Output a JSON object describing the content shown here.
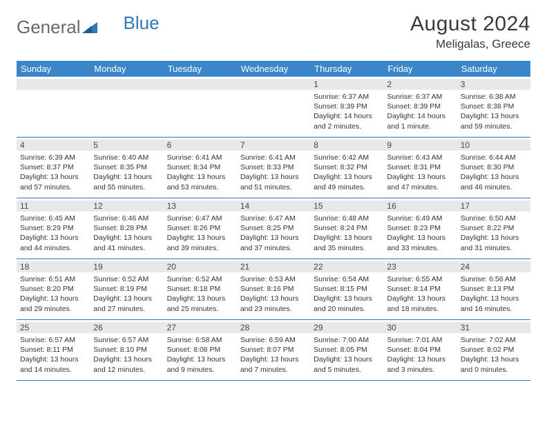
{
  "brand": {
    "part1": "General",
    "part2": "Blue"
  },
  "title": "August 2024",
  "location": "Meligalas, Greece",
  "colors": {
    "header_bg": "#3a86c8",
    "rule": "#3a72a6",
    "daynum_bg": "#e7e8e9",
    "logo_gray": "#6a6a6a",
    "logo_blue": "#2f78b8"
  },
  "weekdays": [
    "Sunday",
    "Monday",
    "Tuesday",
    "Wednesday",
    "Thursday",
    "Friday",
    "Saturday"
  ],
  "weeks": [
    [
      {
        "n": "",
        "sr": "",
        "ss": "",
        "dl": ""
      },
      {
        "n": "",
        "sr": "",
        "ss": "",
        "dl": ""
      },
      {
        "n": "",
        "sr": "",
        "ss": "",
        "dl": ""
      },
      {
        "n": "",
        "sr": "",
        "ss": "",
        "dl": ""
      },
      {
        "n": "1",
        "sr": "6:37 AM",
        "ss": "8:39 PM",
        "dl": "14 hours and 2 minutes."
      },
      {
        "n": "2",
        "sr": "6:37 AM",
        "ss": "8:39 PM",
        "dl": "14 hours and 1 minute."
      },
      {
        "n": "3",
        "sr": "6:38 AM",
        "ss": "8:38 PM",
        "dl": "13 hours and 59 minutes."
      }
    ],
    [
      {
        "n": "4",
        "sr": "6:39 AM",
        "ss": "8:37 PM",
        "dl": "13 hours and 57 minutes."
      },
      {
        "n": "5",
        "sr": "6:40 AM",
        "ss": "8:35 PM",
        "dl": "13 hours and 55 minutes."
      },
      {
        "n": "6",
        "sr": "6:41 AM",
        "ss": "8:34 PM",
        "dl": "13 hours and 53 minutes."
      },
      {
        "n": "7",
        "sr": "6:41 AM",
        "ss": "8:33 PM",
        "dl": "13 hours and 51 minutes."
      },
      {
        "n": "8",
        "sr": "6:42 AM",
        "ss": "8:32 PM",
        "dl": "13 hours and 49 minutes."
      },
      {
        "n": "9",
        "sr": "6:43 AM",
        "ss": "8:31 PM",
        "dl": "13 hours and 47 minutes."
      },
      {
        "n": "10",
        "sr": "6:44 AM",
        "ss": "8:30 PM",
        "dl": "13 hours and 46 minutes."
      }
    ],
    [
      {
        "n": "11",
        "sr": "6:45 AM",
        "ss": "8:29 PM",
        "dl": "13 hours and 44 minutes."
      },
      {
        "n": "12",
        "sr": "6:46 AM",
        "ss": "8:28 PM",
        "dl": "13 hours and 41 minutes."
      },
      {
        "n": "13",
        "sr": "6:47 AM",
        "ss": "8:26 PM",
        "dl": "13 hours and 39 minutes."
      },
      {
        "n": "14",
        "sr": "6:47 AM",
        "ss": "8:25 PM",
        "dl": "13 hours and 37 minutes."
      },
      {
        "n": "15",
        "sr": "6:48 AM",
        "ss": "8:24 PM",
        "dl": "13 hours and 35 minutes."
      },
      {
        "n": "16",
        "sr": "6:49 AM",
        "ss": "8:23 PM",
        "dl": "13 hours and 33 minutes."
      },
      {
        "n": "17",
        "sr": "6:50 AM",
        "ss": "8:22 PM",
        "dl": "13 hours and 31 minutes."
      }
    ],
    [
      {
        "n": "18",
        "sr": "6:51 AM",
        "ss": "8:20 PM",
        "dl": "13 hours and 29 minutes."
      },
      {
        "n": "19",
        "sr": "6:52 AM",
        "ss": "8:19 PM",
        "dl": "13 hours and 27 minutes."
      },
      {
        "n": "20",
        "sr": "6:52 AM",
        "ss": "8:18 PM",
        "dl": "13 hours and 25 minutes."
      },
      {
        "n": "21",
        "sr": "6:53 AM",
        "ss": "8:16 PM",
        "dl": "13 hours and 23 minutes."
      },
      {
        "n": "22",
        "sr": "6:54 AM",
        "ss": "8:15 PM",
        "dl": "13 hours and 20 minutes."
      },
      {
        "n": "23",
        "sr": "6:55 AM",
        "ss": "8:14 PM",
        "dl": "13 hours and 18 minutes."
      },
      {
        "n": "24",
        "sr": "6:56 AM",
        "ss": "8:13 PM",
        "dl": "13 hours and 16 minutes."
      }
    ],
    [
      {
        "n": "25",
        "sr": "6:57 AM",
        "ss": "8:11 PM",
        "dl": "13 hours and 14 minutes."
      },
      {
        "n": "26",
        "sr": "6:57 AM",
        "ss": "8:10 PM",
        "dl": "13 hours and 12 minutes."
      },
      {
        "n": "27",
        "sr": "6:58 AM",
        "ss": "8:08 PM",
        "dl": "13 hours and 9 minutes."
      },
      {
        "n": "28",
        "sr": "6:59 AM",
        "ss": "8:07 PM",
        "dl": "13 hours and 7 minutes."
      },
      {
        "n": "29",
        "sr": "7:00 AM",
        "ss": "8:05 PM",
        "dl": "13 hours and 5 minutes."
      },
      {
        "n": "30",
        "sr": "7:01 AM",
        "ss": "8:04 PM",
        "dl": "13 hours and 3 minutes."
      },
      {
        "n": "31",
        "sr": "7:02 AM",
        "ss": "8:02 PM",
        "dl": "13 hours and 0 minutes."
      }
    ]
  ],
  "labels": {
    "sunrise": "Sunrise: ",
    "sunset": "Sunset: ",
    "daylight": "Daylight: "
  }
}
